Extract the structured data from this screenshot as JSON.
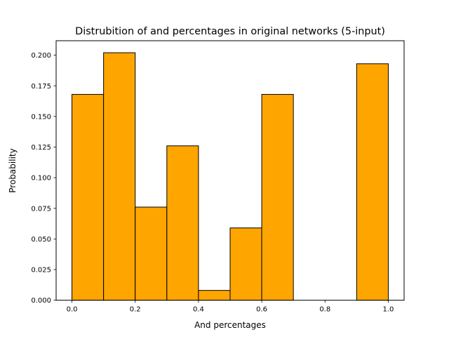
{
  "chart_data": {
    "type": "bar",
    "title": "Distrubition of and percentages in original networks (5-input)",
    "xlabel": "And percentages",
    "ylabel": "Probability",
    "xlim": [
      -0.05,
      1.05
    ],
    "ylim": [
      0,
      0.2118
    ],
    "bin_edges": [
      0.0,
      0.1,
      0.2,
      0.3,
      0.4,
      0.5,
      0.6,
      0.7,
      0.8,
      0.9,
      1.0
    ],
    "values": [
      0.168,
      0.202,
      0.076,
      0.126,
      0.008,
      0.059,
      0.168,
      0.0,
      0.0,
      0.193
    ],
    "xticks": [
      "0.0",
      "0.2",
      "0.4",
      "0.6",
      "0.8",
      "1.0"
    ],
    "xtick_values": [
      0.0,
      0.2,
      0.4,
      0.6,
      0.8,
      1.0
    ],
    "yticks": [
      "0.000",
      "0.025",
      "0.050",
      "0.075",
      "0.100",
      "0.125",
      "0.150",
      "0.175",
      "0.200"
    ],
    "ytick_values": [
      0.0,
      0.025,
      0.05,
      0.075,
      0.1,
      0.125,
      0.15,
      0.175,
      0.2
    ],
    "bar_color": "#ffa500",
    "edge_color": "#000000",
    "grid": false
  }
}
